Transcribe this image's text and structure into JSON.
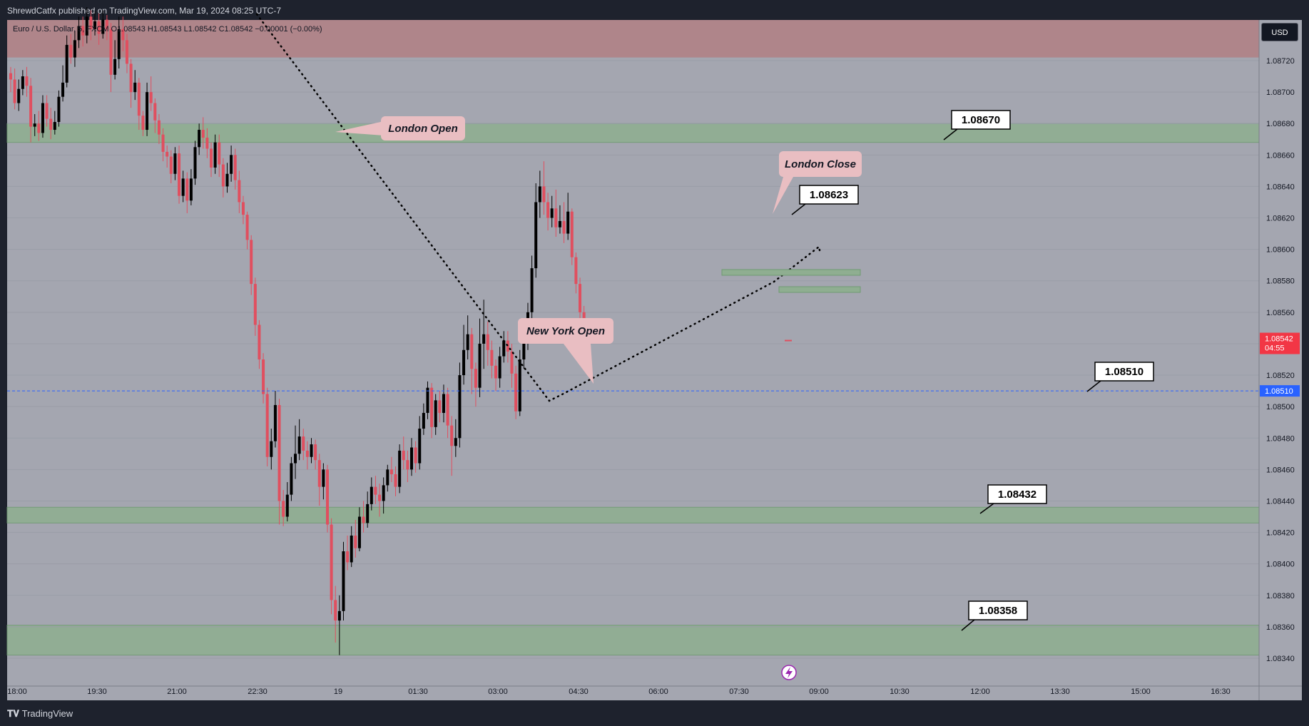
{
  "header": {
    "publisher_line": "ShrewdCatfx published on TradingView.com, Mar 19, 2024 08:25 UTC-7"
  },
  "legend": {
    "text": "Euro / U.S. Dollar, 5, FXCM  O1.08543 H1.08543 L1.08542 C1.08542 −0.00001 (−0.00%)"
  },
  "currency_button": "USD",
  "footer": {
    "brand": "TradingView"
  },
  "colors": {
    "up": "#000000",
    "down": "#e04f5f",
    "zone_green": "#8fae91",
    "zone_red": "#b08286",
    "current_price": "#f23645",
    "level_line": "#2962ff"
  },
  "chart_data": {
    "type": "candlestick",
    "symbol": "Euro / U.S. Dollar",
    "timeframe": "5",
    "ylim": [
      1.0833,
      1.0874
    ],
    "y_ticks": [
      "1.08720",
      "1.08700",
      "1.08680",
      "1.08660",
      "1.08640",
      "1.08620",
      "1.08600",
      "1.08580",
      "1.08560",
      "1.08540",
      "1.08520",
      "1.08500",
      "1.08480",
      "1.08460",
      "1.08440",
      "1.08420",
      "1.08400",
      "1.08380",
      "1.08360",
      "1.08340"
    ],
    "x_ticks": [
      "18:00",
      "19:30",
      "21:00",
      "22:30",
      "19",
      "01:30",
      "03:00",
      "04:30",
      "06:00",
      "07:30",
      "09:00",
      "10:30",
      "12:00",
      "13:30",
      "15:00",
      "16:30"
    ],
    "zones": [
      {
        "type": "supply",
        "from": 1.08722,
        "to": 1.088
      },
      {
        "type": "demand",
        "from": 1.08668,
        "to": 1.0868
      },
      {
        "type": "demand",
        "from": 1.08426,
        "to": 1.08436
      },
      {
        "type": "demand",
        "from": 1.08342,
        "to": 1.08361
      }
    ],
    "level_labels": [
      "1.08670",
      "1.08623",
      "1.08510",
      "1.08432",
      "1.08358"
    ],
    "annotations": [
      "London Open",
      "New York Open",
      "London Close"
    ],
    "current_price": {
      "value": "1.08542",
      "countdown": "04:55"
    },
    "horizontal_line": {
      "value": "1.08510"
    },
    "candles": [
      [
        1.08712,
        1.08708,
        1.08716,
        1.087
      ],
      [
        1.08708,
        1.08693,
        1.08715,
        1.08689
      ],
      [
        1.08693,
        1.08702,
        1.08708,
        1.08688
      ],
      [
        1.08702,
        1.0871,
        1.08714,
        1.08698
      ],
      [
        1.0871,
        1.08704,
        1.08716,
        1.08697
      ],
      [
        1.08704,
        1.08678,
        1.08709,
        1.08668
      ],
      [
        1.08678,
        1.0868,
        1.08686,
        1.08672
      ],
      [
        1.0868,
        1.08674,
        1.08688,
        1.08669
      ],
      [
        1.08674,
        1.08693,
        1.08698,
        1.08671
      ],
      [
        1.08693,
        1.08683,
        1.08698,
        1.08678
      ],
      [
        1.08683,
        1.08676,
        1.0869,
        1.0867
      ],
      [
        1.08676,
        1.08681,
        1.08688,
        1.08673
      ],
      [
        1.08681,
        1.08697,
        1.08701,
        1.08678
      ],
      [
        1.08697,
        1.08706,
        1.08717,
        1.08694
      ],
      [
        1.08706,
        1.0873,
        1.08736,
        1.08703
      ],
      [
        1.0873,
        1.08722,
        1.08737,
        1.08718
      ],
      [
        1.08722,
        1.08733,
        1.08739,
        1.08716
      ],
      [
        1.08733,
        1.08742,
        1.08748,
        1.08728
      ],
      [
        1.08742,
        1.08736,
        1.08748,
        1.08729
      ],
      [
        1.08736,
        1.08748,
        1.08754,
        1.08731
      ],
      [
        1.08748,
        1.0874,
        1.08752,
        1.08733
      ],
      [
        1.0874,
        1.08745,
        1.08752,
        1.08736
      ],
      [
        1.08745,
        1.08737,
        1.0875,
        1.0873
      ],
      [
        1.08737,
        1.08746,
        1.08752,
        1.08734
      ],
      [
        1.08746,
        1.0874,
        1.08749,
        1.08733
      ],
      [
        1.0874,
        1.08711,
        1.08744,
        1.087
      ],
      [
        1.08711,
        1.08721,
        1.08733,
        1.08708
      ],
      [
        1.08721,
        1.0874,
        1.08748,
        1.08715
      ],
      [
        1.0874,
        1.08733,
        1.08748,
        1.08726
      ],
      [
        1.08733,
        1.08718,
        1.08737,
        1.08712
      ],
      [
        1.08718,
        1.087,
        1.08721,
        1.0869
      ],
      [
        1.087,
        1.08706,
        1.08714,
        1.08695
      ],
      [
        1.08706,
        1.08685,
        1.08709,
        1.08676
      ],
      [
        1.08685,
        1.08676,
        1.08688,
        1.08672
      ],
      [
        1.08676,
        1.087,
        1.08706,
        1.08672
      ],
      [
        1.087,
        1.08693,
        1.0871,
        1.08688
      ],
      [
        1.08693,
        1.08682,
        1.08696,
        1.08674
      ],
      [
        1.08682,
        1.08673,
        1.08686,
        1.08667
      ],
      [
        1.08673,
        1.08662,
        1.08677,
        1.08656
      ],
      [
        1.08662,
        1.08659,
        1.08666,
        1.08652
      ],
      [
        1.08659,
        1.08648,
        1.08663,
        1.08642
      ],
      [
        1.08648,
        1.08661,
        1.08665,
        1.08644
      ],
      [
        1.08661,
        1.08634,
        1.08666,
        1.08629
      ],
      [
        1.08634,
        1.08645,
        1.0865,
        1.0863
      ],
      [
        1.08645,
        1.08631,
        1.08649,
        1.08623
      ],
      [
        1.08631,
        1.08645,
        1.08651,
        1.08628
      ],
      [
        1.08645,
        1.08665,
        1.08669,
        1.08641
      ],
      [
        1.08665,
        1.08676,
        1.0868,
        1.0866
      ],
      [
        1.08676,
        1.08671,
        1.08684,
        1.08664
      ],
      [
        1.08671,
        1.08664,
        1.08677,
        1.08658
      ],
      [
        1.08664,
        1.08652,
        1.08668,
        1.08646
      ],
      [
        1.08652,
        1.08668,
        1.08673,
        1.08648
      ],
      [
        1.08668,
        1.08654,
        1.08673,
        1.08646
      ],
      [
        1.08654,
        1.0864,
        1.08658,
        1.08633
      ],
      [
        1.0864,
        1.08648,
        1.08655,
        1.08636
      ],
      [
        1.08648,
        1.0866,
        1.08666,
        1.08643
      ],
      [
        1.0866,
        1.08644,
        1.08664,
        1.08638
      ],
      [
        1.08644,
        1.0863,
        1.0865,
        1.08623
      ],
      [
        1.0863,
        1.08622,
        1.08634,
        1.08616
      ],
      [
        1.08622,
        1.08606,
        1.08624,
        1.086
      ],
      [
        1.08606,
        1.08578,
        1.08609,
        1.08571
      ],
      [
        1.08578,
        1.08552,
        1.08582,
        1.08545
      ],
      [
        1.08552,
        1.0853,
        1.08555,
        1.08524
      ],
      [
        1.0853,
        1.08508,
        1.08534,
        1.08502
      ],
      [
        1.08508,
        1.08468,
        1.08512,
        1.08462
      ],
      [
        1.08468,
        1.08478,
        1.08486,
        1.0846
      ],
      [
        1.08478,
        1.08501,
        1.0851,
        1.08474
      ],
      [
        1.08501,
        1.0844,
        1.08505,
        1.08425
      ],
      [
        1.0844,
        1.0843,
        1.08447,
        1.08424
      ],
      [
        1.0843,
        1.08444,
        1.08452,
        1.08427
      ],
      [
        1.08444,
        1.08464,
        1.08468,
        1.0844
      ],
      [
        1.08464,
        1.0847,
        1.08488,
        1.08454
      ],
      [
        1.0847,
        1.08481,
        1.08492,
        1.08466
      ],
      [
        1.08481,
        1.08472,
        1.08486,
        1.08466
      ],
      [
        1.08472,
        1.08468,
        1.08478,
        1.0846
      ],
      [
        1.08468,
        1.08476,
        1.0848,
        1.08464
      ],
      [
        1.08476,
        1.08466,
        1.08479,
        1.0846
      ],
      [
        1.08466,
        1.08449,
        1.0847,
        1.08437
      ],
      [
        1.08449,
        1.0846,
        1.08464,
        1.08441
      ],
      [
        1.0846,
        1.08425,
        1.08463,
        1.0842
      ],
      [
        1.08425,
        1.08377,
        1.08429,
        1.08368
      ],
      [
        1.08377,
        1.08364,
        1.08386,
        1.0835
      ],
      [
        1.08364,
        1.0837,
        1.0838,
        1.08342
      ],
      [
        1.0837,
        1.08408,
        1.08414,
        1.08364
      ],
      [
        1.08408,
        1.08401,
        1.08418,
        1.08396
      ],
      [
        1.08401,
        1.08418,
        1.08424,
        1.08398
      ],
      [
        1.08418,
        1.0841,
        1.08428,
        1.08404
      ],
      [
        1.0841,
        1.0843,
        1.08436,
        1.08408
      ],
      [
        1.0843,
        1.08426,
        1.0844,
        1.0842
      ],
      [
        1.08426,
        1.08438,
        1.08446,
        1.08423
      ],
      [
        1.08438,
        1.08449,
        1.08455,
        1.08434
      ],
      [
        1.08449,
        1.08444,
        1.08456,
        1.08438
      ],
      [
        1.08444,
        1.0844,
        1.08451,
        1.0843
      ],
      [
        1.0844,
        1.0845,
        1.08455,
        1.08432
      ],
      [
        1.0845,
        1.0846,
        1.08463,
        1.08446
      ],
      [
        1.0846,
        1.08457,
        1.08468,
        1.08452
      ],
      [
        1.08457,
        1.08449,
        1.08462,
        1.08443
      ],
      [
        1.08449,
        1.08472,
        1.08476,
        1.08445
      ],
      [
        1.08472,
        1.08466,
        1.08481,
        1.0846
      ],
      [
        1.08466,
        1.0846,
        1.08472,
        1.08452
      ],
      [
        1.0846,
        1.08474,
        1.0848,
        1.08456
      ],
      [
        1.08474,
        1.08464,
        1.08478,
        1.08458
      ],
      [
        1.08464,
        1.08486,
        1.08494,
        1.0846
      ],
      [
        1.08486,
        1.08496,
        1.08502,
        1.08482
      ],
      [
        1.08496,
        1.08512,
        1.08516,
        1.08492
      ],
      [
        1.08512,
        1.08487,
        1.08515,
        1.0848
      ],
      [
        1.08487,
        1.08504,
        1.08508,
        1.08482
      ],
      [
        1.08504,
        1.08496,
        1.0851,
        1.0849
      ],
      [
        1.08496,
        1.08508,
        1.08514,
        1.0849
      ],
      [
        1.08508,
        1.08488,
        1.08512,
        1.0848
      ],
      [
        1.08488,
        1.08475,
        1.08494,
        1.08456
      ],
      [
        1.08475,
        1.0848,
        1.08492,
        1.08468
      ],
      [
        1.0848,
        1.0852,
        1.08528,
        1.08474
      ],
      [
        1.0852,
        1.08536,
        1.08552,
        1.08514
      ],
      [
        1.08536,
        1.08546,
        1.08558,
        1.0853
      ],
      [
        1.08546,
        1.08524,
        1.0855,
        1.08508
      ],
      [
        1.08524,
        1.08512,
        1.08528,
        1.085
      ],
      [
        1.08512,
        1.0854,
        1.08556,
        1.08506
      ],
      [
        1.0854,
        1.08546,
        1.08568,
        1.08524
      ],
      [
        1.08546,
        1.08536,
        1.08554,
        1.08526
      ],
      [
        1.08536,
        1.08526,
        1.08542,
        1.08518
      ],
      [
        1.08526,
        1.08518,
        1.0853,
        1.0851
      ],
      [
        1.08518,
        1.08532,
        1.08538,
        1.08512
      ],
      [
        1.08532,
        1.08542,
        1.08548,
        1.08528
      ],
      [
        1.08542,
        1.08535,
        1.08548,
        1.08528
      ],
      [
        1.08535,
        1.08521,
        1.0854,
        1.08512
      ],
      [
        1.08521,
        1.08497,
        1.08526,
        1.08492
      ],
      [
        1.08497,
        1.0853,
        1.08536,
        1.08494
      ],
      [
        1.0853,
        1.08542,
        1.0855,
        1.08524
      ],
      [
        1.08542,
        1.0856,
        1.08566,
        1.08536
      ],
      [
        1.0856,
        1.08588,
        1.08596,
        1.08554
      ],
      [
        1.08588,
        1.0863,
        1.08642,
        1.08582
      ],
      [
        1.0863,
        1.0864,
        1.0865,
        1.0862
      ],
      [
        1.0864,
        1.0863,
        1.08656,
        1.08622
      ],
      [
        1.0863,
        1.0862,
        1.08636,
        1.08612
      ],
      [
        1.0862,
        1.08626,
        1.08634,
        1.08614
      ],
      [
        1.08626,
        1.08614,
        1.08638,
        1.08608
      ],
      [
        1.08614,
        1.08618,
        1.08628,
        1.0861
      ],
      [
        1.08618,
        1.0861,
        1.0863,
        1.08604
      ],
      [
        1.0861,
        1.08624,
        1.08636,
        1.08606
      ],
      [
        1.08624,
        1.08595,
        1.08626,
        1.0859
      ],
      [
        1.08595,
        1.08578,
        1.08598,
        1.08572
      ],
      [
        1.08578,
        1.0856,
        1.08582,
        1.08555
      ],
      [
        1.0856,
        1.08544,
        1.08564,
        1.0854
      ],
      [
        1.08543,
        1.08542,
        1.08543,
        1.08542
      ]
    ]
  }
}
